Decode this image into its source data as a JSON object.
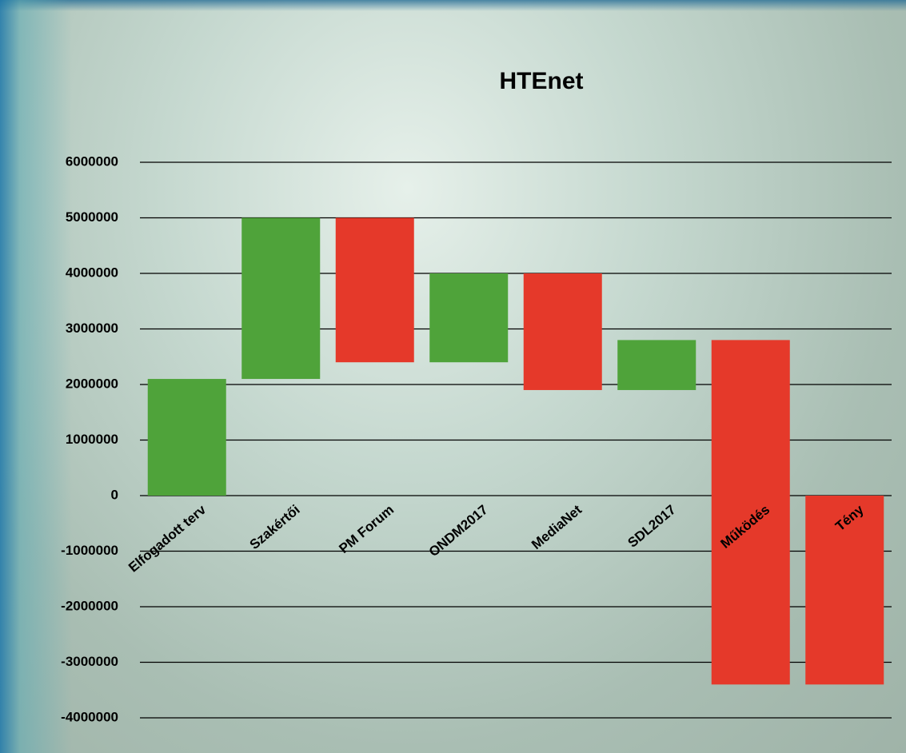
{
  "chart_data": {
    "type": "waterfall",
    "title": "HTEnet",
    "categories": [
      "Elfogadott terv",
      "Szakértői",
      "PM Forum",
      "ONDM2017",
      "MediaNet",
      "SDL2017",
      "Működés",
      "Tény"
    ],
    "values": [
      2100000,
      2900000,
      -2600000,
      1600000,
      -2100000,
      900000,
      -6200000,
      -3400000
    ],
    "totals": [
      false,
      false,
      false,
      false,
      false,
      false,
      false,
      true
    ],
    "increase_color": "#4fa33a",
    "decrease_color": "#e5392a",
    "ylim": [
      -4000000,
      6000000
    ],
    "yticks": [
      -4000000,
      -3000000,
      -2000000,
      -1000000,
      0,
      1000000,
      2000000,
      3000000,
      4000000,
      5000000,
      6000000
    ],
    "grid": true
  }
}
